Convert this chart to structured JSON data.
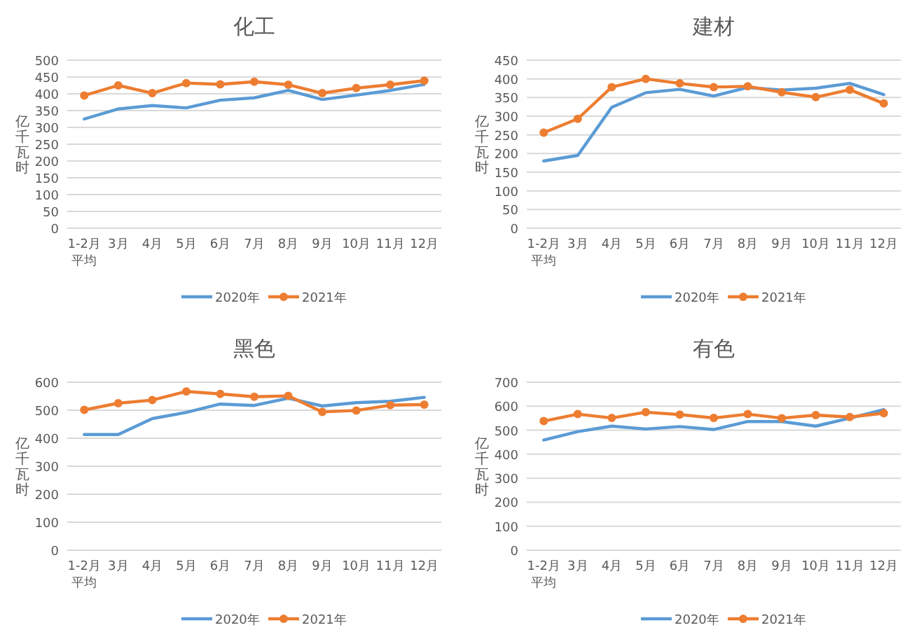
{
  "chart_data": [
    {
      "type": "line",
      "title": "化工",
      "ylabel": "亿千瓦时",
      "categories": [
        "1-2月平均",
        "3月",
        "4月",
        "5月",
        "6月",
        "7月",
        "8月",
        "9月",
        "10月",
        "11月",
        "12月"
      ],
      "ylim": [
        0,
        500
      ],
      "yticks": [
        0,
        50,
        100,
        150,
        200,
        250,
        300,
        350,
        400,
        450,
        500
      ],
      "grid": "y",
      "legend": "bottom",
      "series": [
        {
          "name": "2020年",
          "color": "#5b9bd5",
          "marker": "none",
          "values": [
            325,
            355,
            365,
            358,
            381,
            388,
            410,
            383,
            396,
            410,
            428
          ]
        },
        {
          "name": "2021年",
          "color": "#ed7d31",
          "marker": "circle",
          "values": [
            395,
            425,
            402,
            432,
            428,
            436,
            427,
            402,
            417,
            427,
            439
          ]
        }
      ]
    },
    {
      "type": "line",
      "title": "建材",
      "ylabel": "亿千瓦时",
      "categories": [
        "1-2月平均",
        "3月",
        "4月",
        "5月",
        "6月",
        "7月",
        "8月",
        "9月",
        "10月",
        "11月",
        "12月"
      ],
      "ylim": [
        0,
        450
      ],
      "yticks": [
        0,
        50,
        100,
        150,
        200,
        250,
        300,
        350,
        400,
        450
      ],
      "grid": "y",
      "legend": "bottom",
      "series": [
        {
          "name": "2020年",
          "color": "#5b9bd5",
          "marker": "none",
          "values": [
            180,
            195,
            324,
            363,
            372,
            354,
            377,
            370,
            375,
            388,
            358
          ]
        },
        {
          "name": "2021年",
          "color": "#ed7d31",
          "marker": "circle",
          "values": [
            256,
            293,
            378,
            400,
            388,
            378,
            380,
            364,
            351,
            371,
            334
          ]
        }
      ]
    },
    {
      "type": "line",
      "title": "黑色",
      "ylabel": "亿千瓦时",
      "categories": [
        "1-2月平均",
        "3月",
        "4月",
        "5月",
        "6月",
        "7月",
        "8月",
        "9月",
        "10月",
        "11月",
        "12月"
      ],
      "ylim": [
        0,
        600
      ],
      "yticks": [
        0,
        100,
        200,
        300,
        400,
        500,
        600
      ],
      "grid": "y",
      "legend": "bottom",
      "series": [
        {
          "name": "2020年",
          "color": "#5b9bd5",
          "marker": "none",
          "values": [
            413,
            413,
            470,
            492,
            522,
            517,
            543,
            515,
            527,
            532,
            546
          ]
        },
        {
          "name": "2021年",
          "color": "#ed7d31",
          "marker": "circle",
          "values": [
            501,
            525,
            536,
            567,
            558,
            548,
            551,
            494,
            499,
            518,
            520
          ]
        }
      ]
    },
    {
      "type": "line",
      "title": "有色",
      "ylabel": "亿千瓦时",
      "categories": [
        "1-2月平均",
        "3月",
        "4月",
        "5月",
        "6月",
        "7月",
        "8月",
        "9月",
        "10月",
        "11月",
        "12月"
      ],
      "ylim": [
        0,
        700
      ],
      "yticks": [
        0,
        100,
        200,
        300,
        400,
        500,
        600,
        700
      ],
      "grid": "y",
      "legend": "bottom",
      "series": [
        {
          "name": "2020年",
          "color": "#5b9bd5",
          "marker": "none",
          "values": [
            459,
            494,
            517,
            505,
            515,
            503,
            536,
            536,
            517,
            550,
            586
          ]
        },
        {
          "name": "2021年",
          "color": "#ed7d31",
          "marker": "circle",
          "values": [
            538,
            567,
            551,
            575,
            565,
            551,
            567,
            550,
            563,
            555,
            571
          ]
        }
      ]
    }
  ]
}
